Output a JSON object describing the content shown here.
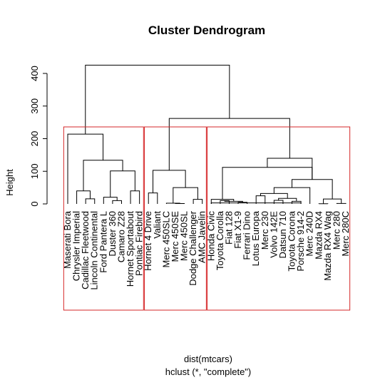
{
  "chart_data": {
    "type": "dendrogram",
    "title": "Cluster Dendrogram",
    "ylabel": "Height",
    "xlabel": "dist(mtcars)",
    "sublabel": "hclust (*, \"complete\")",
    "ylim": [
      0,
      425.3
    ],
    "yticks": [
      0,
      100,
      200,
      300,
      400
    ],
    "leaves": [
      "Maserati Bora",
      "Chrysler Imperial",
      "Cadillac Fleetwood",
      "Lincoln Continental",
      "Ford Pantera L",
      "Duster 360",
      "Camaro Z28",
      "Hornet Sportabout",
      "Pontiac Firebird",
      "Hornet 4 Drive",
      "Valiant",
      "Merc 450SLC",
      "Merc 450SE",
      "Merc 450SL",
      "Dodge Challenger",
      "AMC Javelin",
      "Honda Civic",
      "Toyota Corolla",
      "Fiat 128",
      "Fiat X1-9",
      "Ferrari Dino",
      "Lotus Europa",
      "Merc 230",
      "Volvo 142E",
      "Datsun 710",
      "Toyota Corona",
      "Porsche 914-2",
      "Merc 240D",
      "Mazda RX4",
      "Mazda RX4 Wag",
      "Merc 280",
      "Merc 280C"
    ],
    "merges": [
      {
        "left": "Cadillac Fleetwood",
        "right": "Lincoln Continental",
        "height": 15.6
      },
      {
        "left": "Chrysler Imperial",
        "right": [
          2,
          3
        ],
        "height": 40.0
      },
      {
        "left": "Duster 360",
        "right": "Camaro Z28",
        "height": 10.1
      },
      {
        "left": "Ford Pantera L",
        "right": [
          5,
          6
        ],
        "height": 20.4
      },
      {
        "left": "Hornet Sportabout",
        "right": "Pontiac Firebird",
        "height": 40.0
      },
      {
        "left": [
          4,
          6
        ],
        "right": [
          7,
          8
        ],
        "height": 101.0
      },
      {
        "left": [
          1,
          3
        ],
        "right": [
          4,
          8
        ],
        "height": 134.0
      },
      {
        "left": "Maserati Bora",
        "right": [
          1,
          8
        ],
        "height": 214.0
      },
      {
        "left": "Hornet 4 Drive",
        "right": "Valiant",
        "height": 33.6
      },
      {
        "left": "Merc 450SE",
        "right": "Merc 450SL",
        "height": 0.98
      },
      {
        "left": "Merc 450SLC",
        "right": [
          12,
          13
        ],
        "height": 2.14
      },
      {
        "left": "Dodge Challenger",
        "right": "AMC Javelin",
        "height": 14.0
      },
      {
        "left": [
          11,
          13
        ],
        "right": [
          14,
          15
        ],
        "height": 50.0
      },
      {
        "left": [
          9,
          10
        ],
        "right": [
          11,
          15
        ],
        "height": 103.0
      },
      {
        "left": "Toyota Corolla",
        "right": "Fiat 128",
        "height": 10.0
      },
      {
        "left": "Fiat X1-9",
        "right": "Ferrari Dino",
        "height": 5.0
      },
      {
        "left": [
          17,
          18
        ],
        "right": [
          19,
          20
        ],
        "height": 8.0
      },
      {
        "left": "Honda Civic",
        "right": [
          17,
          20
        ],
        "height": 14.0
      },
      {
        "left": "Lotus Europa",
        "right": "Merc 230",
        "height": 25.0
      },
      {
        "left": "Volvo 142E",
        "right": "Datsun 710",
        "height": 11.0
      },
      {
        "left": "Toyota Corona",
        "right": "Porsche 914-2",
        "height": 8.0
      },
      {
        "left": [
          23,
          24
        ],
        "right": [
          25,
          26
        ],
        "height": 17.0
      },
      {
        "left": [
          21,
          22
        ],
        "right": [
          23,
          26
        ],
        "height": 32.0
      },
      {
        "left": [
          21,
          26
        ],
        "right": "Merc 240D",
        "height": 50.0
      },
      {
        "left": "Mazda RX4",
        "right": "Mazda RX4 Wag",
        "height": 0.61
      },
      {
        "left": "Merc 280",
        "right": "Merc 280C",
        "height": 1.4
      },
      {
        "left": [
          28,
          29
        ],
        "right": [
          30,
          31
        ],
        "height": 15.0
      },
      {
        "left": "Honda Civic",
        "right": [
          21,
          31
        ],
        "height": 3.0
      },
      {
        "left": [
          21,
          27
        ],
        "right": [
          28,
          31
        ],
        "height": 75.0
      },
      {
        "left": [
          16,
          20
        ],
        "right": [
          21,
          31
        ],
        "height": 112.0
      },
      {
        "left": [
          16,
          31
        ],
        "right": [
          21,
          31
        ],
        "height": 140.0
      },
      {
        "left": [
          9,
          15
        ],
        "right": [
          16,
          31
        ],
        "height": 262.0
      },
      {
        "left": [
          0,
          8
        ],
        "right": [
          9,
          31
        ],
        "height": 425.3
      }
    ],
    "cluster_boxes": [
      {
        "first": 0,
        "last": 8
      },
      {
        "first": 9,
        "last": 15
      },
      {
        "first": 16,
        "last": 31
      }
    ],
    "box_color": "#d62728",
    "line_color": "#000000",
    "grid": false
  }
}
